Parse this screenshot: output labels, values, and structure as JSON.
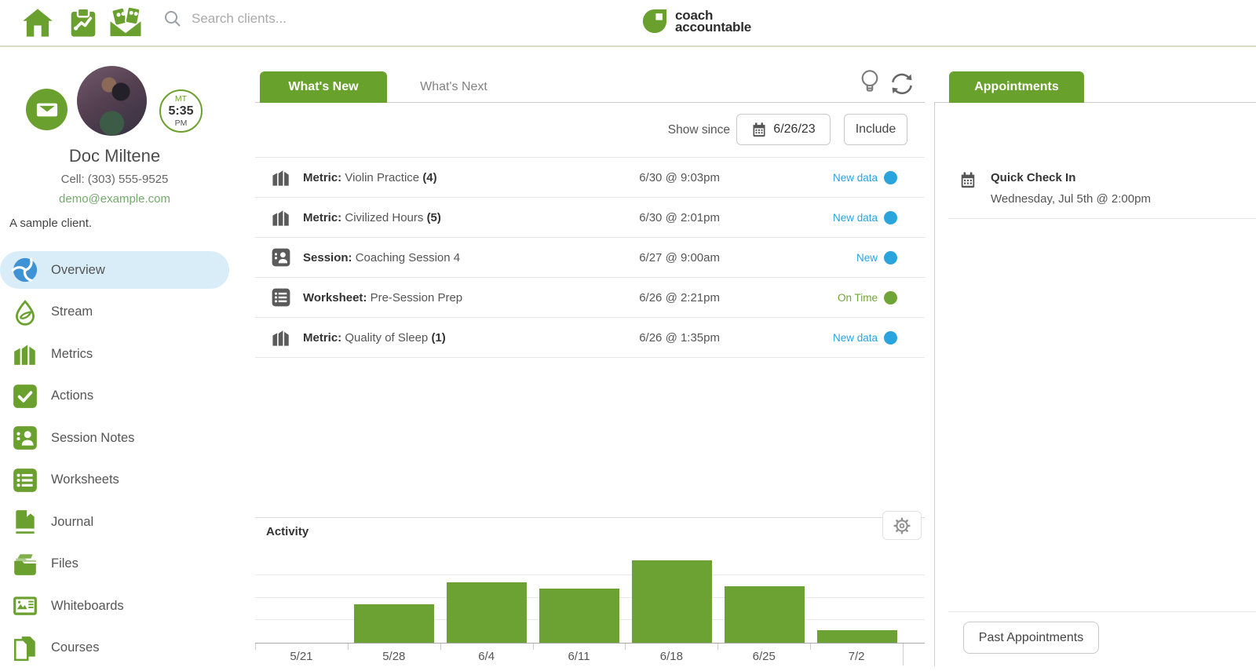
{
  "header": {
    "search_placeholder": "Search clients...",
    "logo_line1": "coach",
    "logo_line2": "accountable",
    "icons": [
      "home-icon",
      "clipboard-trend-icon",
      "envelope-cards-icon",
      "search-icon",
      "leaf-logo-icon"
    ]
  },
  "profile": {
    "name": "Doc Miltene",
    "cell_label": "Cell:",
    "cell_number": "(303) 555-9525",
    "email": "demo@example.com",
    "bio": "A sample client.",
    "timezone": {
      "zone": "MT",
      "time": "5:35",
      "meridiem": "PM"
    }
  },
  "sidebar": {
    "items": [
      {
        "label": "Overview",
        "icon": "overview-pinwheel-icon",
        "active": true
      },
      {
        "label": "Stream",
        "icon": "stream-droplet-icon",
        "active": false
      },
      {
        "label": "Metrics",
        "icon": "metrics-bars-icon",
        "active": false
      },
      {
        "label": "Actions",
        "icon": "actions-check-icon",
        "active": false
      },
      {
        "label": "Session Notes",
        "icon": "session-notes-icon",
        "active": false
      },
      {
        "label": "Worksheets",
        "icon": "worksheets-list-icon",
        "active": false
      },
      {
        "label": "Journal",
        "icon": "journal-book-icon",
        "active": false
      },
      {
        "label": "Files",
        "icon": "files-folder-icon",
        "active": false
      },
      {
        "label": "Whiteboards",
        "icon": "whiteboard-image-icon",
        "active": false
      },
      {
        "label": "Courses",
        "icon": "courses-pages-icon",
        "active": false
      }
    ]
  },
  "main": {
    "tabs": [
      {
        "label": "What's New",
        "active": true
      },
      {
        "label": "What's Next",
        "active": false
      }
    ],
    "filter": {
      "label": "Show since",
      "date": "6/26/23",
      "include_label": "Include"
    },
    "rows": [
      {
        "icon": "metric",
        "type": "Metric:",
        "title": "Violin Practice",
        "count": "(4)",
        "datetime": "6/30 @ 9:03pm",
        "status": "New data",
        "status_color": "#29a4dd"
      },
      {
        "icon": "metric",
        "type": "Metric:",
        "title": "Civilized Hours",
        "count": "(5)",
        "datetime": "6/30 @ 2:01pm",
        "status": "New data",
        "status_color": "#29a4dd"
      },
      {
        "icon": "session",
        "type": "Session:",
        "title": "Coaching Session 4",
        "count": "",
        "datetime": "6/27 @ 9:00am",
        "status": "New",
        "status_color": "#29a4dd"
      },
      {
        "icon": "worksheet",
        "type": "Worksheet:",
        "title": "Pre-Session Prep",
        "count": "",
        "datetime": "6/26 @ 2:21pm",
        "status": "On Time",
        "status_color": "#6fa436"
      },
      {
        "icon": "metric",
        "type": "Metric:",
        "title": "Quality of Sleep",
        "count": "(1)",
        "datetime": "6/26 @ 1:35pm",
        "status": "New data",
        "status_color": "#29a4dd"
      }
    ],
    "activity_title": "Activity"
  },
  "chart_data": {
    "type": "bar",
    "title": "Activity",
    "categories": [
      "5/21",
      "5/28",
      "6/4",
      "6/11",
      "6/18",
      "6/25",
      "7/2"
    ],
    "values": [
      0,
      1.7,
      2.7,
      2.4,
      3.65,
      2.5,
      0.55
    ],
    "xlabel": "",
    "ylabel": "",
    "ylim": [
      0,
      4.5
    ],
    "grid": true,
    "legend": false,
    "bar_color": "#6ba233"
  },
  "appointments": {
    "header": "Appointments",
    "items": [
      {
        "title": "Quick Check In",
        "datetime": "Wednesday, Jul 5th @ 2:00pm"
      }
    ],
    "past_button": "Past Appointments"
  },
  "colors": {
    "accent_green": "#68a22d",
    "icon_green": "#6aa12e",
    "status_blue": "#29a4dd",
    "status_green": "#6fa436",
    "selected_item_bg": "#d9edf8",
    "overview_blue": "#3f93d4"
  }
}
